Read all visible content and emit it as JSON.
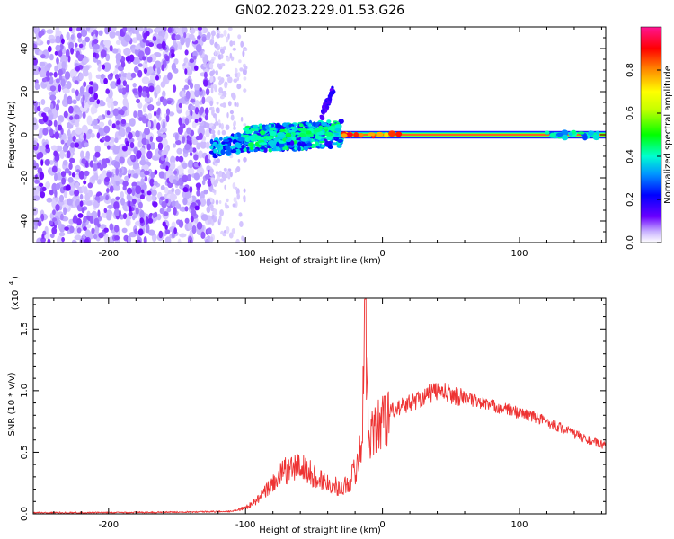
{
  "figure_title": "GN02.2023.229.01.53.G26",
  "chart_data": [
    {
      "type": "heatmap",
      "xlabel": "Height of straight line (km)",
      "ylabel": "Frequency (Hz)",
      "xlim": [
        -255,
        163
      ],
      "ylim": [
        -50,
        50
      ],
      "x_ticks": [
        -200,
        -100,
        0,
        100
      ],
      "x_tick_labels": [
        "-200",
        "-100",
        "0",
        "100"
      ],
      "y_ticks": [
        -40,
        -20,
        0,
        20,
        40
      ],
      "y_tick_labels": [
        "-40",
        "-20",
        "0",
        "20",
        "40"
      ],
      "colorbar": {
        "label": "Normalized spectral amplitude",
        "range": [
          0,
          1
        ],
        "ticks": [
          0.0,
          0.2,
          0.4,
          0.6,
          0.8
        ],
        "tick_labels": [
          "0.0",
          "0.2",
          "0.4",
          "0.6",
          "0.8"
        ],
        "colormap": [
          "#ffffff",
          "#b69cff",
          "#6a00ff",
          "#0000ff",
          "#00b0ff",
          "#00ffc8",
          "#00ff00",
          "#c8ff00",
          "#ffff00",
          "#ff8c00",
          "#ff0000",
          "#ff1493"
        ]
      },
      "regions": [
        {
          "name": "noise",
          "x_range": [
            -255,
            -125
          ],
          "freq_range": [
            -50,
            50
          ],
          "amplitude": 0.15
        },
        {
          "name": "noise-fade",
          "x_range": [
            -125,
            -100
          ],
          "freq_range": [
            -50,
            50
          ],
          "amplitude": 0.05
        },
        {
          "name": "early-signal",
          "x_range": [
            -125,
            -100
          ],
          "freq_center": -7,
          "amplitude": 0.3
        },
        {
          "name": "scattered-signal",
          "x_range": [
            -100,
            -30
          ],
          "freq_center": 0,
          "amplitude": 0.3
        },
        {
          "name": "lock-signal",
          "x_range": [
            -30,
            163
          ],
          "freq_center": 0,
          "amplitude": 0.95
        }
      ],
      "grid": false,
      "legend": "colorbar-right"
    },
    {
      "type": "line",
      "xlabel": "Height of straight line (km)",
      "ylabel": "SNR (10 * v/v)",
      "y_scale_note": "(x10",
      "y_scale_exponent": "4",
      "xlim": [
        -255,
        163
      ],
      "ylim": [
        0,
        1.75
      ],
      "x_ticks": [
        -200,
        -100,
        0,
        100
      ],
      "x_tick_labels": [
        "-200",
        "-100",
        "0",
        "100"
      ],
      "y_ticks": [
        0.0,
        0.5,
        1.0,
        1.5
      ],
      "y_tick_labels": [
        "0.0",
        "0.5",
        "1.0",
        "1.5"
      ],
      "color": "#ee3333",
      "x": [
        -255,
        -200,
        -150,
        -110,
        -100,
        -90,
        -80,
        -70,
        -60,
        -50,
        -40,
        -30,
        -25,
        -20,
        -15,
        -13,
        -10,
        -5,
        0,
        10,
        20,
        30,
        40,
        50,
        60,
        70,
        80,
        90,
        100,
        110,
        120,
        130,
        140,
        150,
        163
      ],
      "y": [
        0.01,
        0.01,
        0.015,
        0.02,
        0.05,
        0.12,
        0.25,
        0.35,
        0.38,
        0.3,
        0.25,
        0.2,
        0.25,
        0.35,
        0.55,
        1.75,
        0.7,
        0.65,
        0.8,
        0.85,
        0.9,
        0.95,
        1.0,
        0.97,
        0.94,
        0.91,
        0.88,
        0.85,
        0.82,
        0.79,
        0.75,
        0.7,
        0.65,
        0.6,
        0.55
      ],
      "grid": false
    }
  ]
}
